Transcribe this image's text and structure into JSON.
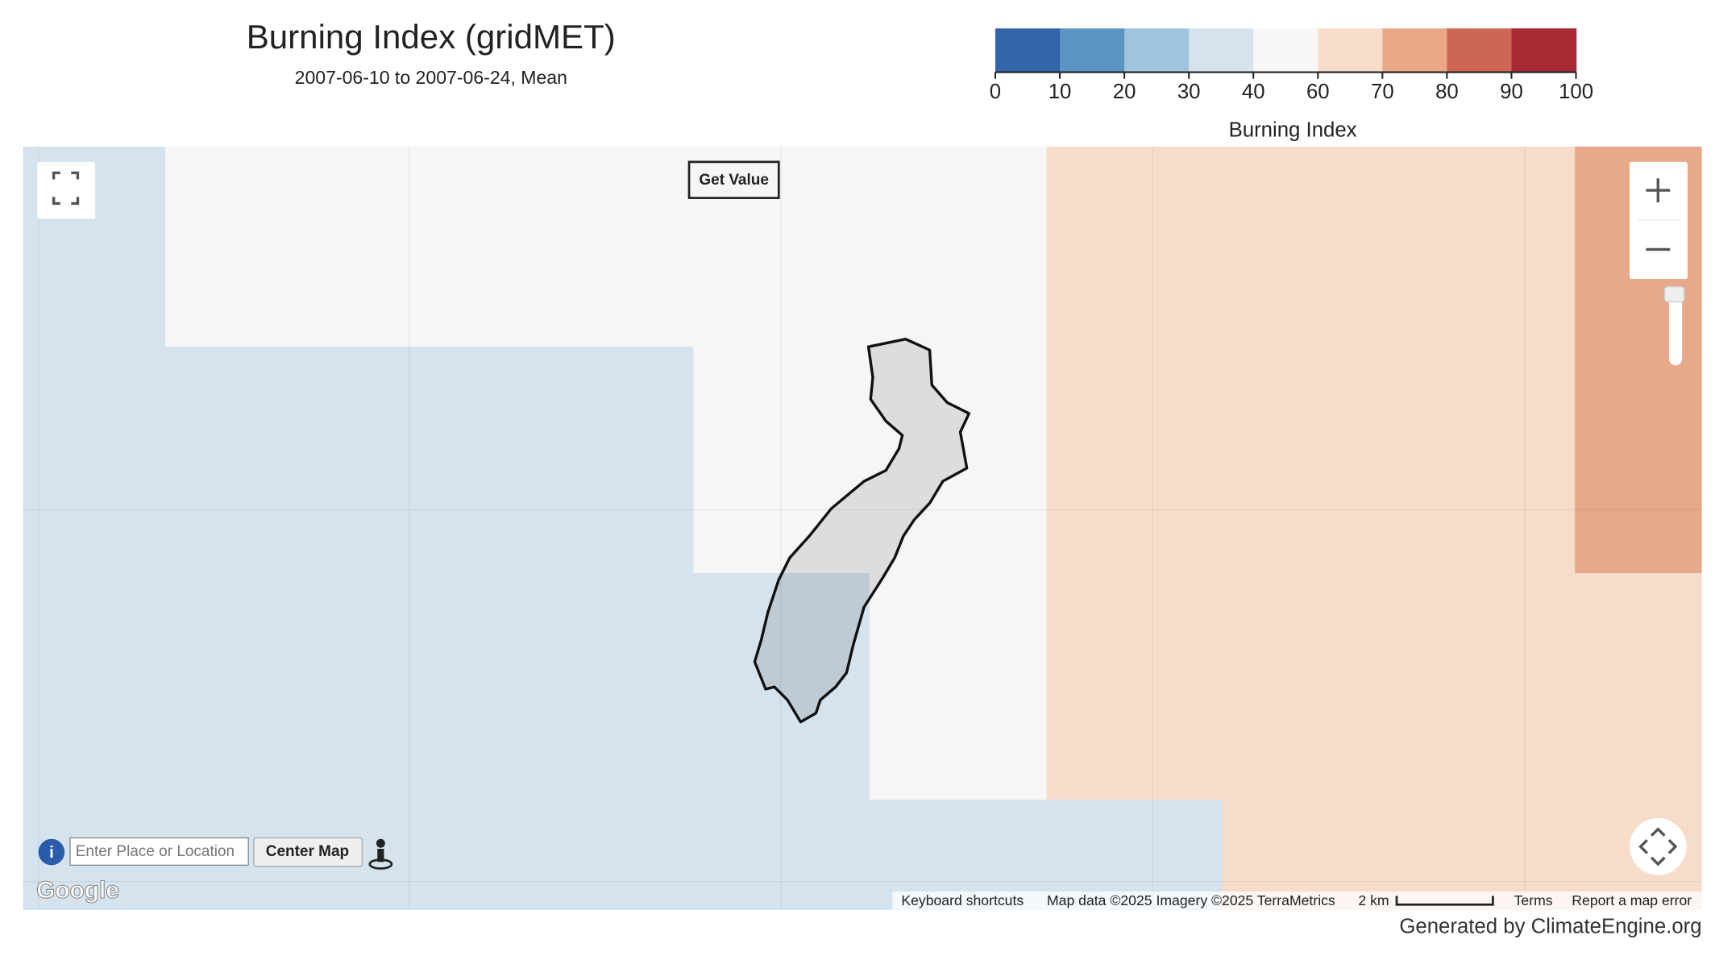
{
  "header": {
    "title": "Burning Index (gridMET)",
    "subtitle": "2007-06-10 to 2007-06-24, Mean"
  },
  "legend": {
    "ticks": [
      0,
      10,
      20,
      30,
      40,
      60,
      70,
      80,
      90,
      100
    ],
    "colors": [
      "#3465a8",
      "#5b93c2",
      "#9fc5de",
      "#d5e3ef",
      "#f7f7f7",
      "#f7dcc9",
      "#e9a886",
      "#cd6652",
      "#a62934"
    ],
    "label": "Burning Index"
  },
  "map": {
    "get_value": "Get Value",
    "search_placeholder": "Enter Place or Location",
    "center_map": "Center Map",
    "google": "Google",
    "keyboard_shortcuts": "Keyboard shortcuts",
    "map_data": "Map data ©2025 Imagery ©2025 TerraMetrics",
    "scale": "2 km",
    "terms": "Terms",
    "report": "Report a map error"
  },
  "footer": {
    "credit": "Generated by ClimateEngine.org"
  }
}
